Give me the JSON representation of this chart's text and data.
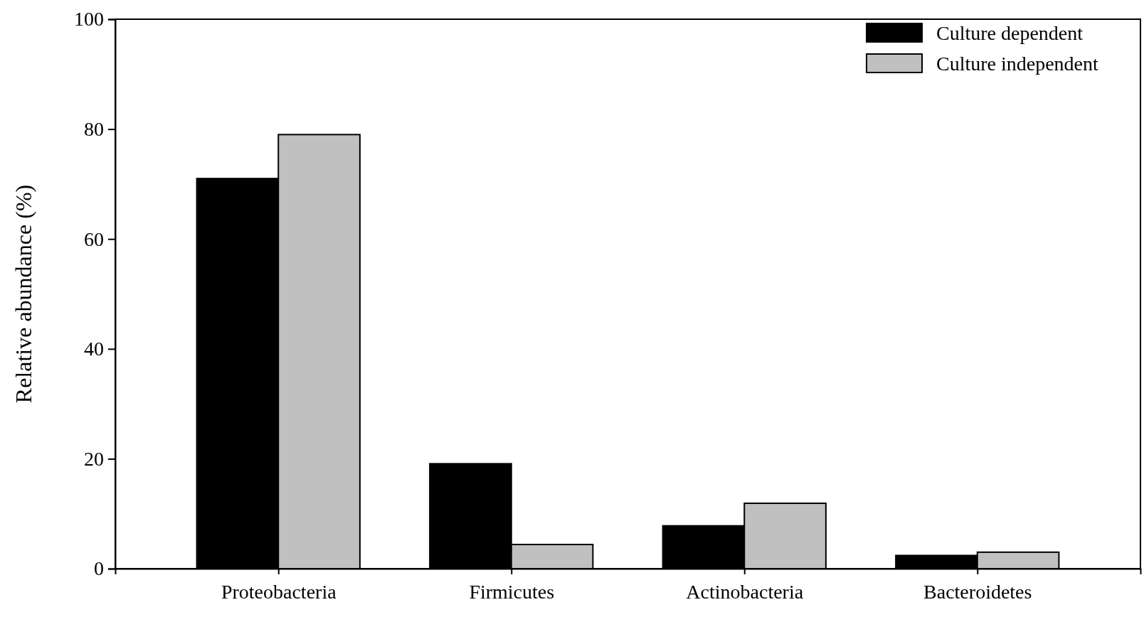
{
  "chart_data": {
    "type": "bar",
    "ylabel": "Relative abundance (%)",
    "categories": [
      "Proteobacteria",
      "Firmicutes",
      "Actinobacteria",
      "Bacteroidetes"
    ],
    "series": [
      {
        "name": "Culture dependent",
        "color": "#000000",
        "values": [
          71,
          19.1,
          7.8,
          2.4
        ]
      },
      {
        "name": "Culture independent",
        "color": "#c0c0c0",
        "values": [
          79,
          4.4,
          11.9,
          3
        ]
      }
    ],
    "ylim": [
      0,
      100
    ],
    "yticks": [
      0,
      20,
      40,
      60,
      80,
      100
    ],
    "grid": false,
    "legend": "top right"
  }
}
